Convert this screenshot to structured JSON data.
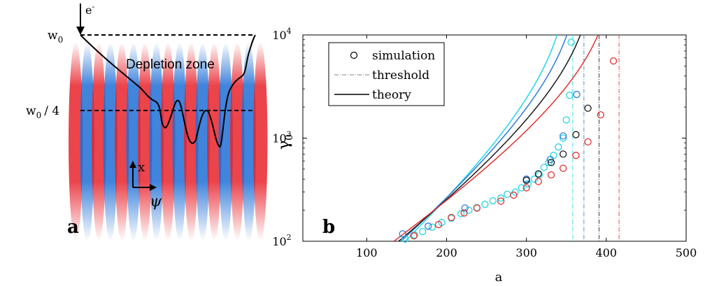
{
  "panel_a": {
    "label": "a",
    "electron_label": "e",
    "electron_superscript": "-",
    "w0_label": "w",
    "w0_subscript": "0",
    "w0_quarter_label": "w",
    "w0_quarter_subscript": "0",
    "w0_quarter_suffix": "/ 4",
    "depletion_label": "Depletion zone",
    "x_axis_label": "x",
    "psi_label": "ψ",
    "colors": {
      "red": "#e8232b",
      "blue": "#1f6fd6"
    }
  },
  "chart_data": {
    "type": "scatter",
    "panel_label": "b",
    "xlabel": "a",
    "ylabel": "γ",
    "ylabel_subscript": "0",
    "xlim": [
      20,
      500
    ],
    "ylim": [
      100,
      10000
    ],
    "yscale": "log",
    "x_ticks": [
      100,
      200,
      300,
      400,
      500
    ],
    "x_tick_labels": [
      "100",
      "200",
      "300",
      "400",
      "500"
    ],
    "y_ticks": [
      100,
      1000,
      10000
    ],
    "y_tick_bases": [
      "10",
      "10",
      "10"
    ],
    "y_tick_exponents": [
      "2",
      "3",
      "4"
    ],
    "legend": {
      "placement": "top-left",
      "entries": [
        "simulation",
        "threshold",
        "theory"
      ]
    },
    "series": [
      {
        "name": "cyan",
        "color": "#21d6e6",
        "threshold": 358,
        "theory_start": 148,
        "simulation": [
          {
            "a": 148,
            "g": 105
          },
          {
            "a": 160,
            "g": 115
          },
          {
            "a": 170,
            "g": 124
          },
          {
            "a": 182,
            "g": 137
          },
          {
            "a": 194,
            "g": 152
          },
          {
            "a": 206,
            "g": 167
          },
          {
            "a": 218,
            "g": 185
          },
          {
            "a": 228,
            "g": 200
          },
          {
            "a": 238,
            "g": 212
          },
          {
            "a": 248,
            "g": 228
          },
          {
            "a": 258,
            "g": 247
          },
          {
            "a": 268,
            "g": 262
          },
          {
            "a": 276,
            "g": 285
          },
          {
            "a": 286,
            "g": 300
          },
          {
            "a": 294,
            "g": 330
          },
          {
            "a": 302,
            "g": 360
          },
          {
            "a": 310,
            "g": 400
          },
          {
            "a": 316,
            "g": 440
          },
          {
            "a": 322,
            "g": 520
          },
          {
            "a": 328,
            "g": 580
          },
          {
            "a": 334,
            "g": 680
          },
          {
            "a": 340,
            "g": 820
          },
          {
            "a": 346,
            "g": 1000
          },
          {
            "a": 350,
            "g": 1500
          },
          {
            "a": 354,
            "g": 2600
          },
          {
            "a": 356,
            "g": 8500
          }
        ]
      },
      {
        "name": "blue",
        "color": "#2f7bd9",
        "threshold": 372,
        "theory_start": 143,
        "simulation": [
          {
            "a": 145,
            "g": 118
          },
          {
            "a": 177,
            "g": 140
          },
          {
            "a": 223,
            "g": 210
          },
          {
            "a": 300,
            "g": 400
          },
          {
            "a": 330,
            "g": 620
          },
          {
            "a": 346,
            "g": 1050
          },
          {
            "a": 363,
            "g": 2650
          }
        ]
      },
      {
        "name": "black",
        "color": "#1a1a1a",
        "threshold": 391,
        "theory_start": 140,
        "simulation": [
          {
            "a": 300,
            "g": 390
          },
          {
            "a": 315,
            "g": 450
          },
          {
            "a": 331,
            "g": 580
          },
          {
            "a": 346,
            "g": 700
          },
          {
            "a": 362,
            "g": 1080
          },
          {
            "a": 377,
            "g": 1950
          }
        ]
      },
      {
        "name": "red",
        "color": "#e0302c",
        "threshold": 416,
        "theory_start": 134,
        "simulation": [
          {
            "a": 159,
            "g": 113
          },
          {
            "a": 190,
            "g": 145
          },
          {
            "a": 206,
            "g": 170
          },
          {
            "a": 222,
            "g": 188
          },
          {
            "a": 238,
            "g": 210
          },
          {
            "a": 268,
            "g": 245
          },
          {
            "a": 284,
            "g": 280
          },
          {
            "a": 300,
            "g": 330
          },
          {
            "a": 315,
            "g": 380
          },
          {
            "a": 331,
            "g": 440
          },
          {
            "a": 346,
            "g": 510
          },
          {
            "a": 362,
            "g": 680
          },
          {
            "a": 377,
            "g": 920
          },
          {
            "a": 393,
            "g": 1680
          },
          {
            "a": 409,
            "g": 5600
          }
        ]
      }
    ]
  }
}
